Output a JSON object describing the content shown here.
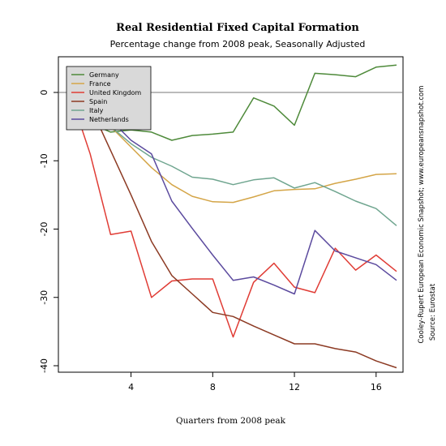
{
  "chart_data": {
    "type": "line",
    "title": "Real Residential Fixed Capital Formation",
    "subtitle": "Percentage change from 2008 peak, Seasonally Adjusted",
    "xlabel": "Quarters from 2008 peak",
    "ylabel": "",
    "source_lines": [
      "Cooley-Rupert European Economic Snapshot; www.europeansnapshot.com",
      "Source: Eurostat"
    ],
    "xlim": [
      1,
      17
    ],
    "ylim": [
      -40,
      4
    ],
    "x_ticks": [
      4,
      8,
      12,
      16
    ],
    "y_ticks": [
      0,
      -10,
      -20,
      -30,
      -40
    ],
    "reference_line": 0,
    "legend_position": "top-left",
    "x": [
      1,
      2,
      3,
      4,
      5,
      6,
      7,
      8,
      9,
      10,
      11,
      12,
      13,
      14,
      15,
      16,
      17
    ],
    "series": [
      {
        "name": "Germany",
        "color": "#4e8a3a",
        "values": [
          0,
          -4.5,
          -5.8,
          -5.5,
          -5.8,
          -7.0,
          -6.3,
          -6.1,
          -5.8,
          -0.8,
          -2.0,
          -4.8,
          2.8,
          2.6,
          2.3,
          3.7,
          4.0
        ]
      },
      {
        "name": "France",
        "color": "#d4a547",
        "values": [
          0,
          -3.0,
          -5.0,
          -8.0,
          -11.0,
          -13.5,
          -15.2,
          -16.0,
          -16.1,
          -15.3,
          -14.4,
          -14.2,
          -14.1,
          -13.3,
          -12.7,
          -12.0,
          -11.9
        ]
      },
      {
        "name": "United Kingdom",
        "color": "#e03c35",
        "values": [
          0,
          -9.0,
          -20.8,
          -20.3,
          -30.0,
          -27.6,
          -27.3,
          -27.3,
          -35.8,
          -27.8,
          -25.0,
          -28.5,
          -29.3,
          -22.8,
          -26.0,
          -23.8,
          -26.2
        ]
      },
      {
        "name": "Spain",
        "color": "#8c3a23",
        "values": [
          0,
          -2.0,
          -8.5,
          -15.0,
          -21.8,
          -26.8,
          -29.5,
          -32.2,
          -32.8,
          -34.2,
          -35.5,
          -36.8,
          -36.8,
          -37.5,
          -38.0,
          -39.3,
          -40.3
        ]
      },
      {
        "name": "Italy",
        "color": "#6fa58f",
        "values": [
          0,
          -2.5,
          -5.0,
          -7.5,
          -9.5,
          -10.8,
          -12.4,
          -12.7,
          -13.5,
          -12.8,
          -12.5,
          -14.0,
          -13.2,
          -14.5,
          -15.9,
          -17.0,
          -19.5
        ]
      },
      {
        "name": "Netherlands",
        "color": "#5b4a9e",
        "values": [
          0,
          -2.0,
          -4.0,
          -7.0,
          -9.0,
          -15.9,
          -19.9,
          -23.8,
          -27.5,
          -27.0,
          -28.2,
          -29.5,
          -20.2,
          -23.2,
          -24.2,
          -25.2,
          -27.5
        ]
      }
    ]
  }
}
